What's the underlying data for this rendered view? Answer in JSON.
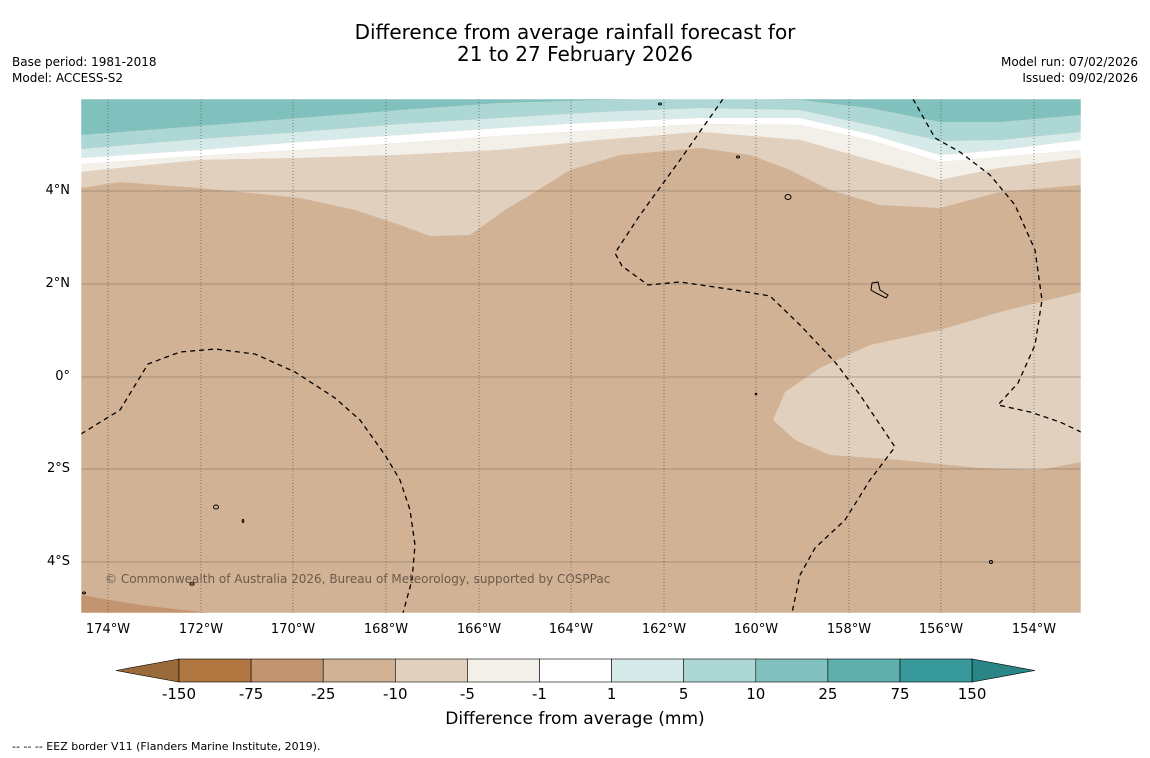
{
  "title": {
    "line1": "Difference from average rainfall forecast for",
    "line2": "21 to 27 February 2026"
  },
  "meta_left": {
    "base_period": "Base period: 1981-2018",
    "model": "Model: ACCESS-S2"
  },
  "meta_right": {
    "model_run": "Model run: 07/02/2026",
    "issued": "Issued: 09/02/2026"
  },
  "map": {
    "lat_labels": [
      "4°N",
      "2°N",
      "0°",
      "2°S",
      "4°S"
    ],
    "lon_labels": [
      "174°W",
      "172°W",
      "170°W",
      "168°W",
      "166°W",
      "164°W",
      "162°W",
      "160°W",
      "158°W",
      "156°W",
      "154°W"
    ],
    "copyright": "© Commonwealth of Australia 2026, Bureau of Meteorology, supported by COSPPac"
  },
  "colorbar": {
    "ticks": [
      "-150",
      "-75",
      "-25",
      "-10",
      "-5",
      "-1",
      "1",
      "5",
      "10",
      "25",
      "75",
      "150"
    ],
    "colors": [
      "#b07840",
      "#c29570",
      "#d2b295",
      "#e2d0bf",
      "#f3efe9",
      "#ffffff",
      "#d6ebe9",
      "#acd7d5",
      "#80c1be",
      "#5fafad",
      "#37999a"
    ],
    "end_low_color": "#9b6a3a",
    "end_high_color": "#2a8586",
    "title": "Difference from average (mm)"
  },
  "footnote": "--  --  -- EEZ border V11 (Flanders Marine Institute, 2019)."
}
